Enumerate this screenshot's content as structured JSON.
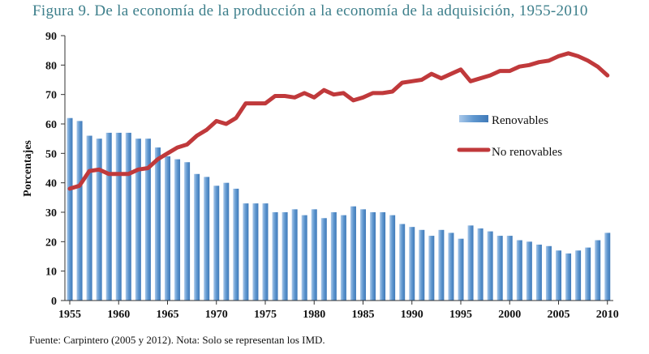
{
  "title": "Figura 9. De la economía de la producción a la economía de la adquisición, 1955-2010",
  "note": "Fuente: Carpintero (2005 y 2012). Nota: Solo se representan los IMD.",
  "colors": {
    "bar": "#5f97cf",
    "line": "#c0393b",
    "title": "#3d7f8b"
  },
  "chart_data": {
    "type": "bar+line",
    "ylabel": "Porcentajes",
    "xlabel": "",
    "ylim": [
      0,
      90
    ],
    "yticks": [
      0,
      10,
      20,
      30,
      40,
      50,
      60,
      70,
      80,
      90
    ],
    "xticks": [
      1955,
      1960,
      1965,
      1970,
      1975,
      1980,
      1985,
      1990,
      1995,
      2000,
      2005,
      2010
    ],
    "grid": false,
    "legend_position": "right",
    "x": [
      1955,
      1956,
      1957,
      1958,
      1959,
      1960,
      1961,
      1962,
      1963,
      1964,
      1965,
      1966,
      1967,
      1968,
      1969,
      1970,
      1971,
      1972,
      1973,
      1974,
      1975,
      1976,
      1977,
      1978,
      1979,
      1980,
      1981,
      1982,
      1983,
      1984,
      1985,
      1986,
      1987,
      1988,
      1989,
      1990,
      1991,
      1992,
      1993,
      1994,
      1995,
      1996,
      1997,
      1998,
      1999,
      2000,
      2001,
      2002,
      2003,
      2004,
      2005,
      2006,
      2007,
      2008,
      2009,
      2010
    ],
    "series": [
      {
        "name": "Renovables",
        "kind": "bar",
        "values": [
          62,
          61,
          56,
          55,
          57,
          57,
          57,
          55,
          55,
          52,
          49,
          48,
          47,
          43,
          42,
          39,
          40,
          38,
          33,
          33,
          33,
          30,
          30,
          31,
          29,
          31,
          28,
          30,
          29,
          32,
          31,
          30,
          30,
          29,
          26,
          25,
          24,
          22,
          24,
          23,
          21,
          25.5,
          24.5,
          23.5,
          22,
          22,
          20.5,
          20,
          19,
          18.5,
          17,
          16,
          17,
          18,
          20.5,
          23
        ]
      },
      {
        "name": "No renovables",
        "kind": "line",
        "values": [
          38,
          39,
          44,
          44.5,
          43,
          43,
          43,
          44.5,
          45,
          48,
          50,
          52,
          53,
          56,
          58,
          61,
          60,
          62,
          67,
          67,
          67,
          69.5,
          69.5,
          69,
          70.5,
          69,
          71.5,
          70,
          70.5,
          68,
          69,
          70.5,
          70.5,
          71,
          74,
          74.5,
          75,
          77,
          75.5,
          77,
          78.5,
          74.5,
          75.5,
          76.5,
          78,
          78,
          79.5,
          80,
          81,
          81.5,
          83,
          84,
          83,
          81.5,
          79.5,
          76.5
        ]
      }
    ]
  }
}
